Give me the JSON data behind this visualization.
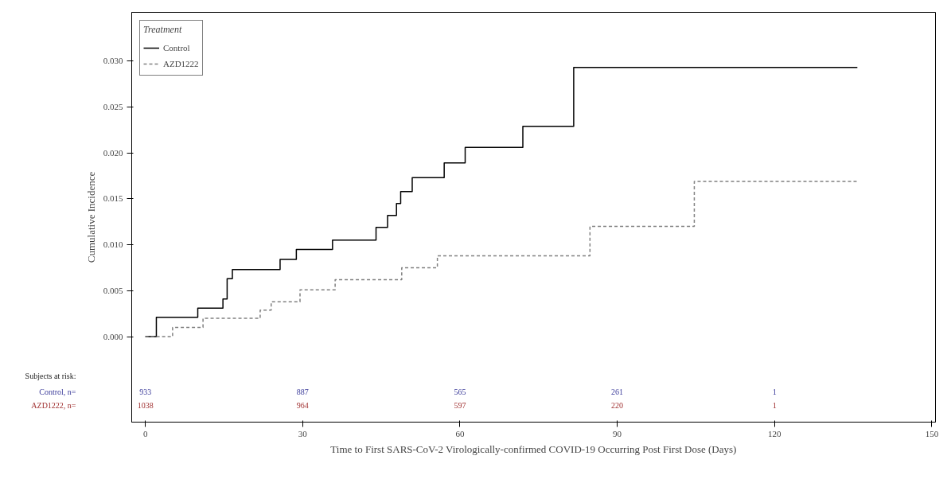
{
  "chart_data": {
    "type": "step",
    "xlabel": "Time to First SARS-CoV-2 Virologically-confirmed COVID-19 Occurring Post First Dose (Days)",
    "ylabel": "Cumulative Incidence",
    "legend_title": "Treatment",
    "legend": "top left",
    "grid": false,
    "xlim": [
      -2.6,
      150.7
    ],
    "ylim": [
      -0.0093,
      0.0353
    ],
    "xticks": [
      0,
      30,
      60,
      90,
      120,
      150
    ],
    "yticks": [
      {
        "value": 0,
        "label": "0.000"
      },
      {
        "value": 0.005,
        "label": "0.005"
      },
      {
        "value": 0.01,
        "label": "0.010"
      },
      {
        "value": 0.015,
        "label": "0.015"
      },
      {
        "value": 0.02,
        "label": "0.020"
      },
      {
        "value": 0.025,
        "label": "0.025"
      },
      {
        "value": 0.03,
        "label": "0.030"
      }
    ],
    "series": [
      {
        "name": "Control",
        "color": "#000000",
        "line_style": "solid",
        "x": [
          0,
          2.1,
          10,
          14.8,
          15.6,
          16.6,
          25.7,
          28.8,
          35.7,
          44,
          46.2,
          47.9,
          48.7,
          50.9,
          57,
          61,
          72,
          81.7,
          135.8
        ],
        "values": [
          0,
          0.0021,
          0.0031,
          0.0041,
          0.0063,
          0.0073,
          0.0084,
          0.0095,
          0.0105,
          0.0119,
          0.0132,
          0.0145,
          0.0158,
          0.0173,
          0.0189,
          0.0206,
          0.0229,
          0.0293,
          0.0293
        ]
      },
      {
        "name": "AZD1222",
        "color": "#808080",
        "line_style": "dashed",
        "x": [
          0,
          5.2,
          11,
          21.9,
          24,
          29.5,
          36.2,
          48.9,
          55.7,
          84.8,
          104.7,
          135.8
        ],
        "values": [
          0,
          0.001,
          0.002,
          0.0029,
          0.0038,
          0.0051,
          0.0062,
          0.0075,
          0.0088,
          0.012,
          0.0169,
          0.0169
        ]
      }
    ],
    "annotations": [
      "Subjects at risk:",
      "Control, n=",
      "933",
      "887",
      "565",
      "261",
      "1",
      "AZD1222, n=",
      "1038",
      "964",
      "597",
      "220",
      "1"
    ]
  }
}
